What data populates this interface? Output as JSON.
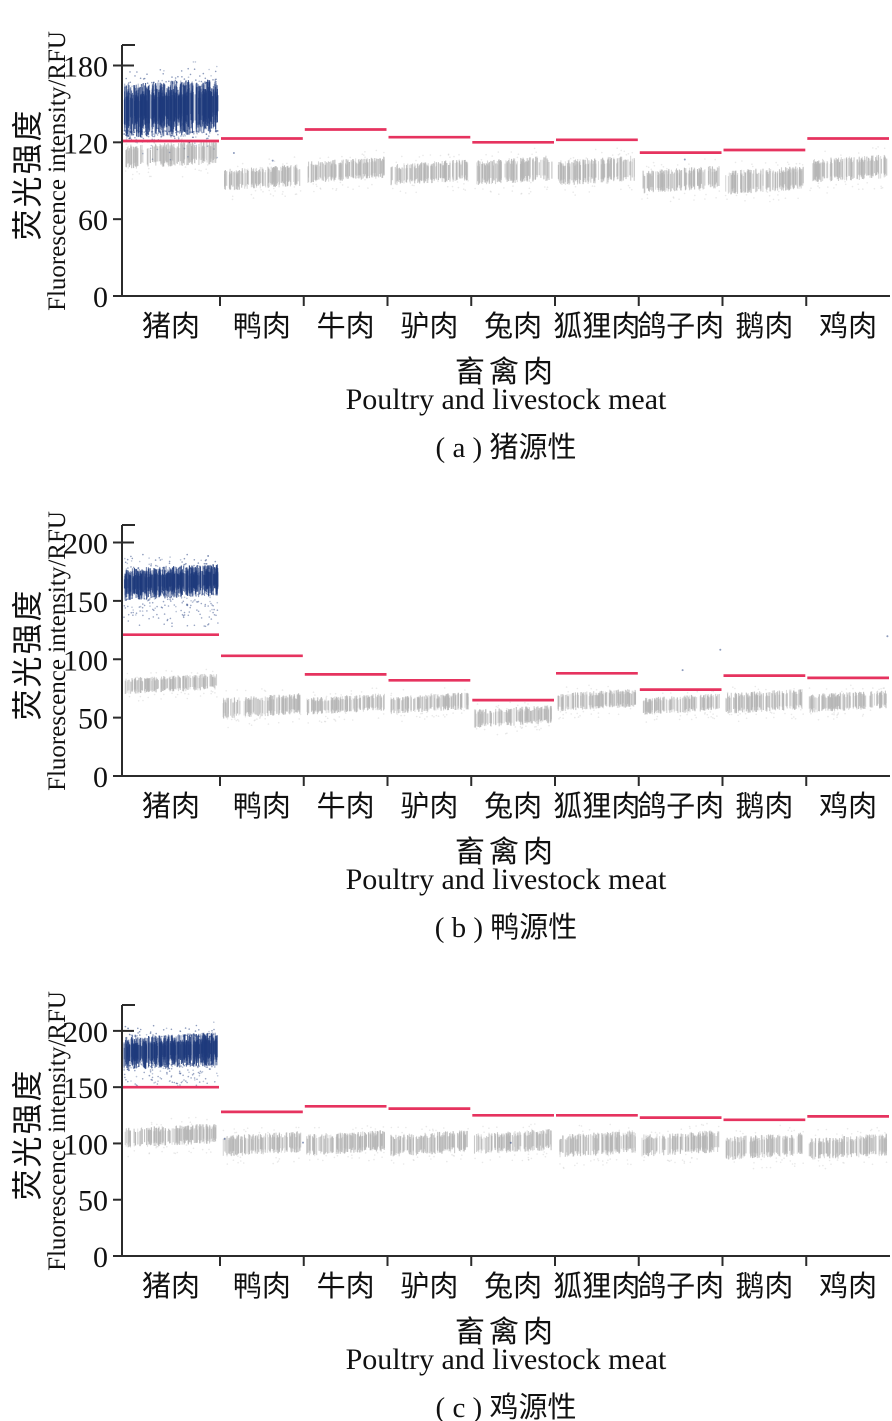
{
  "figure": {
    "ylabel_cn": "荧光强度",
    "ylabel_en": "Fluorescence intensity/RFU",
    "xlabel_cn": "畜禽肉",
    "xlabel_en": "Poultry and livestock meat"
  },
  "categories": [
    "猪肉",
    "鸭肉",
    "牛肉",
    "驴肉",
    "兔肉",
    "狐狸肉",
    "鸽子肉",
    "鹅肉",
    "鸡肉"
  ],
  "colors": {
    "positive_blue": "#1e3a7c",
    "threshold_red": "#e6335f",
    "negative_gray": "#b5b5b5",
    "axis": "#2b2b2b",
    "text": "#111111"
  },
  "chart_data": [
    {
      "id": "a",
      "type": "scatter",
      "caption": "( a ) 猪源性",
      "target": "猪源性",
      "yticks": [
        0,
        60,
        120,
        180
      ],
      "ylim": [
        0,
        196
      ],
      "grid": false,
      "threshold_RFU": [
        121,
        123,
        130,
        124,
        120,
        122,
        112,
        114,
        123
      ],
      "negative_band_RFU": [
        [
          101,
          120
        ],
        [
          84,
          101
        ],
        [
          90,
          107
        ],
        [
          88,
          105
        ],
        [
          88,
          108
        ],
        [
          88,
          108
        ],
        [
          82,
          100
        ],
        [
          81,
          100
        ],
        [
          90,
          109
        ]
      ],
      "positive_band_RFU": {
        "category_index": 0,
        "dense": [
          125,
          168
        ],
        "scatter": [
          120,
          178
        ]
      }
    },
    {
      "id": "b",
      "type": "scatter",
      "caption": "( b ) 鸭源性",
      "target": "鸭源性",
      "yticks": [
        0,
        50,
        100,
        150,
        200
      ],
      "ylim": [
        0,
        215
      ],
      "grid": false,
      "threshold_RFU": [
        121,
        103,
        87,
        82,
        65,
        88,
        74,
        86,
        84
      ],
      "negative_band_RFU": [
        [
          72,
          86
        ],
        [
          51,
          69
        ],
        [
          54,
          69
        ],
        [
          55,
          70
        ],
        [
          43,
          59
        ],
        [
          57,
          73
        ],
        [
          54,
          69
        ],
        [
          55,
          73
        ],
        [
          56,
          72
        ]
      ],
      "positive_band_RFU": {
        "category_index": 0,
        "dense": [
          152,
          180
        ],
        "scatter": [
          128,
          190
        ]
      }
    },
    {
      "id": "c",
      "type": "scatter",
      "caption": "( c ) 鸡源性",
      "target": "鸡源性",
      "yticks": [
        0,
        50,
        100,
        150,
        200
      ],
      "ylim": [
        0,
        223
      ],
      "grid": false,
      "threshold_RFU": [
        150,
        128,
        133,
        131,
        125,
        125,
        123,
        121,
        124
      ],
      "negative_band_RFU": [
        [
          98,
          116
        ],
        [
          90,
          109
        ],
        [
          91,
          110
        ],
        [
          90,
          110
        ],
        [
          92,
          111
        ],
        [
          89,
          110
        ],
        [
          90,
          110
        ],
        [
          87,
          108
        ],
        [
          87,
          107
        ]
      ],
      "positive_band_RFU": {
        "category_index": 0,
        "dense": [
          167,
          197
        ],
        "scatter": [
          150,
          205
        ]
      }
    }
  ]
}
